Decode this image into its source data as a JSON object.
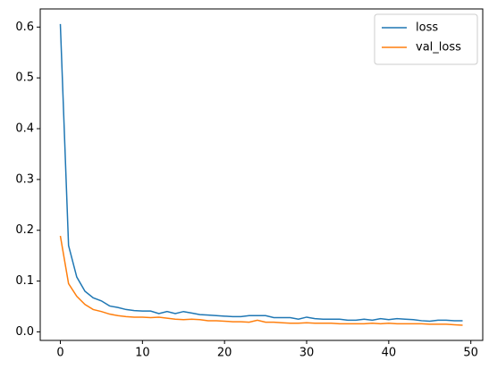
{
  "chart_data": {
    "type": "line",
    "x": [
      0,
      1,
      2,
      3,
      4,
      5,
      6,
      7,
      8,
      9,
      10,
      11,
      12,
      13,
      14,
      15,
      16,
      17,
      18,
      19,
      20,
      21,
      22,
      23,
      24,
      25,
      26,
      27,
      28,
      29,
      30,
      31,
      32,
      33,
      34,
      35,
      36,
      37,
      38,
      39,
      40,
      41,
      42,
      43,
      44,
      45,
      46,
      47,
      48,
      49
    ],
    "series": [
      {
        "name": "loss",
        "color": "#1f77b4",
        "values": [
          0.606,
          0.17,
          0.108,
          0.08,
          0.067,
          0.061,
          0.051,
          0.048,
          0.044,
          0.042,
          0.041,
          0.041,
          0.036,
          0.04,
          0.036,
          0.04,
          0.037,
          0.034,
          0.033,
          0.032,
          0.031,
          0.03,
          0.03,
          0.032,
          0.032,
          0.032,
          0.028,
          0.028,
          0.028,
          0.025,
          0.029,
          0.026,
          0.025,
          0.025,
          0.025,
          0.023,
          0.023,
          0.025,
          0.023,
          0.026,
          0.024,
          0.026,
          0.025,
          0.024,
          0.022,
          0.021,
          0.023,
          0.023,
          0.022,
          0.022
        ]
      },
      {
        "name": "val_loss",
        "color": "#ff7f0e",
        "values": [
          0.189,
          0.095,
          0.07,
          0.054,
          0.044,
          0.04,
          0.035,
          0.032,
          0.03,
          0.029,
          0.029,
          0.028,
          0.029,
          0.027,
          0.025,
          0.024,
          0.025,
          0.024,
          0.022,
          0.022,
          0.021,
          0.02,
          0.02,
          0.019,
          0.023,
          0.019,
          0.019,
          0.018,
          0.017,
          0.017,
          0.018,
          0.017,
          0.017,
          0.017,
          0.016,
          0.016,
          0.016,
          0.016,
          0.017,
          0.016,
          0.017,
          0.016,
          0.016,
          0.016,
          0.016,
          0.015,
          0.015,
          0.015,
          0.014,
          0.013
        ]
      }
    ],
    "xlim": [
      -2.45,
      51.45
    ],
    "ylim": [
      -0.0168,
      0.6357
    ],
    "xticks": [
      0,
      10,
      20,
      30,
      40,
      50
    ],
    "yticks": [
      {
        "value": 0,
        "label": "0.0"
      },
      0.1,
      0.2,
      0.3,
      0.4,
      0.5,
      0.6
    ],
    "legend": "upper right"
  }
}
